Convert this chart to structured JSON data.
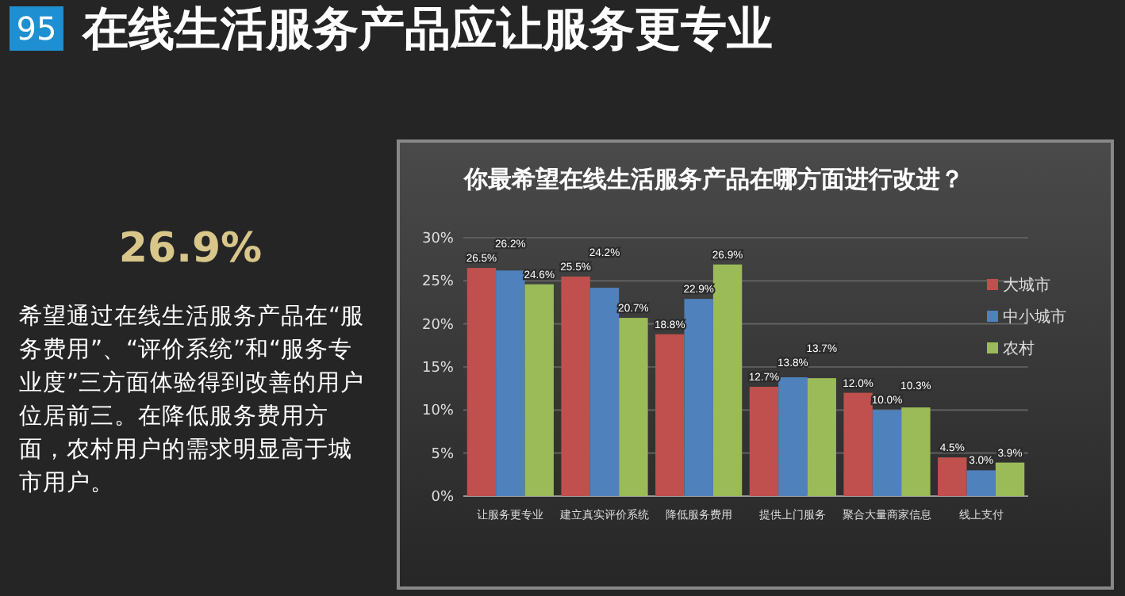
{
  "chart_data": {
    "type": "bar",
    "title": "在线生活服务产品应让服务更专业",
    "subtitle": "你最希望在线生活服务产品在哪方面进行改进？",
    "annotations": [
      "95",
      "26.9%",
      "希望通过在线生活服务产品在“服务费用”、“评价系统”和“服务专业度”三方面体验得到改善的用户位居前三。在降低服务费用方面，农村用户的需求明显高于城市用户。"
    ],
    "categories": [
      "让服务更专业",
      "建立真实评价系统",
      "降低服务费用",
      "提供上门服务",
      "聚合大量商家信息",
      "线上支付"
    ],
    "series": [
      {
        "name": "大城市",
        "color": "#c0504d",
        "values": [
          26.5,
          25.5,
          18.8,
          12.7,
          12.0,
          4.5
        ],
        "value_labels": [
          "26.5%",
          "25.5%",
          "18.8%",
          "12.7%",
          "12.0%",
          "4.5%"
        ]
      },
      {
        "name": "中小城市",
        "color": "#4f81bd",
        "values": [
          26.2,
          24.2,
          22.9,
          13.8,
          10.0,
          3.0
        ],
        "value_labels": [
          "26.2%",
          "24.2%",
          "22.9%",
          "13.8%",
          "10.0%",
          "3.0%"
        ]
      },
      {
        "name": "农村",
        "color": "#9bbb59",
        "values": [
          24.6,
          20.7,
          26.9,
          13.7,
          10.3,
          3.9
        ],
        "value_labels": [
          "24.6%",
          "20.7%",
          "26.9%",
          "13.7%",
          "10.3%",
          "3.9%"
        ]
      }
    ],
    "ylim": [
      0,
      30
    ],
    "yticks": [
      {
        "value": 0,
        "label": "0%"
      },
      {
        "value": 5,
        "label": "5%"
      },
      {
        "value": 10,
        "label": "10%"
      },
      {
        "value": 15,
        "label": "15%"
      },
      {
        "value": 20,
        "label": "20%"
      },
      {
        "value": 25,
        "label": "25%"
      },
      {
        "value": 30,
        "label": "30%"
      }
    ],
    "grid": "y",
    "legend": "right"
  }
}
